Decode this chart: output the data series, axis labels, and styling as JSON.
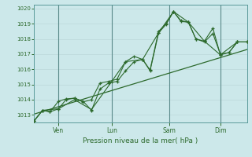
{
  "bg_color": "#cce8ea",
  "grid_color": "#b0d8da",
  "line_color": "#2d6a2d",
  "ylim": [
    1012.5,
    1020.25
  ],
  "ylabel_ticks": [
    1013,
    1014,
    1015,
    1016,
    1017,
    1018,
    1019,
    1020
  ],
  "xlabel": "Pression niveau de la mer( hPa )",
  "xtick_labels": [
    "Ven",
    "Lun",
    "Sam",
    "Dim"
  ],
  "xtick_positions": [
    0.115,
    0.365,
    0.635,
    0.875
  ],
  "vline_positions": [
    0.115,
    0.365,
    0.635,
    0.875
  ],
  "trend_line": {
    "x": [
      0.0,
      1.0
    ],
    "y": [
      1013.05,
      1017.3
    ]
  },
  "line1_x": [
    0.0,
    0.04,
    0.075,
    0.115,
    0.15,
    0.19,
    0.23,
    0.27,
    0.31,
    0.35,
    0.39,
    0.43,
    0.47,
    0.51,
    0.545,
    0.585,
    0.62,
    0.655,
    0.69,
    0.725,
    0.76,
    0.8,
    0.84,
    0.875,
    0.915,
    0.955,
    1.0
  ],
  "line1_y": [
    1012.6,
    1013.3,
    1013.2,
    1013.4,
    1014.0,
    1014.1,
    1013.9,
    1013.3,
    1014.7,
    1015.1,
    1015.2,
    1015.9,
    1016.5,
    1016.65,
    1015.9,
    1018.4,
    1018.95,
    1019.8,
    1019.15,
    1019.1,
    1018.0,
    1017.85,
    1018.7,
    1016.95,
    1017.1,
    1017.8,
    1017.8
  ],
  "line2_x": [
    0.0,
    0.04,
    0.075,
    0.115,
    0.15,
    0.19,
    0.23,
    0.27,
    0.31,
    0.35,
    0.39,
    0.43,
    0.47,
    0.51,
    0.545,
    0.585,
    0.62,
    0.655,
    0.69,
    0.725,
    0.76,
    0.8,
    0.84,
    0.875,
    0.915,
    0.955,
    1.0
  ],
  "line2_y": [
    1012.6,
    1013.3,
    1013.2,
    1013.9,
    1014.05,
    1014.1,
    1013.85,
    1014.0,
    1015.1,
    1015.2,
    1015.35,
    1016.5,
    1016.85,
    1016.65,
    1015.95,
    1018.5,
    1019.0,
    1019.8,
    1019.2,
    1019.1,
    1018.0,
    1017.8,
    1018.35,
    1017.0,
    1017.1,
    1017.8,
    1017.8
  ],
  "line3_x": [
    0.0,
    0.04,
    0.115,
    0.19,
    0.27,
    0.365,
    0.43,
    0.51,
    0.585,
    0.655,
    0.725,
    0.8,
    0.875,
    0.955,
    1.0
  ],
  "line3_y": [
    1012.6,
    1013.3,
    1013.4,
    1014.0,
    1013.35,
    1015.2,
    1016.5,
    1016.65,
    1018.4,
    1019.8,
    1019.1,
    1017.85,
    1016.95,
    1017.8,
    1017.8
  ]
}
